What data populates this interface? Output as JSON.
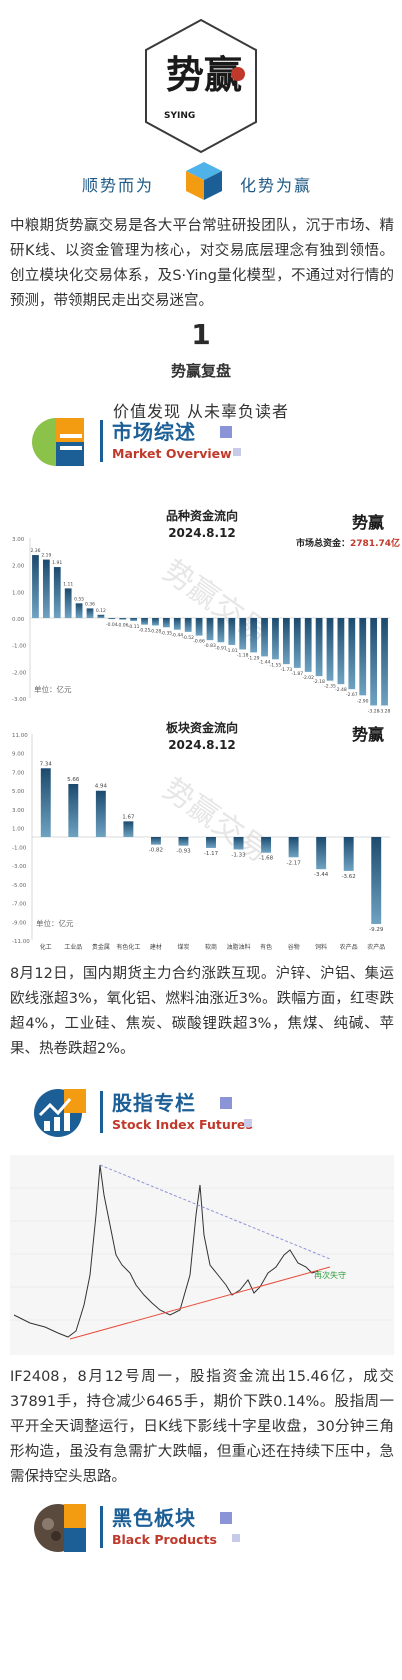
{
  "brand": {
    "logo_main": "势赢",
    "logo_sub": "SYING",
    "slogan_left": "顺势而为",
    "slogan_right": "化势为赢"
  },
  "intro": "中粮期货势赢交易是各大平台常驻研投团队，沉于市场、精研K线、以资金管理为核心，对交易底层理念有独到领悟。创立模块化交易体系，及S·Ying量化模型，不通过对行情的预测，带领期民走出交易迷宫。",
  "section": {
    "number": "1",
    "title": "势赢复盘",
    "subtitle": "价值发现 从未辜负读者"
  },
  "market_overview": {
    "title_cn": "市场综述",
    "title_en": "Market Overview"
  },
  "chart_data": [
    {
      "type": "bar",
      "title": "品种资金流向",
      "subtitle": "2024.8.12",
      "annotation_label": "市场总资金：",
      "annotation_value": "2781.74亿",
      "unit_label": "单位：亿元",
      "ylim": [
        -3.0,
        3.0
      ],
      "yticks": [
        "3.00",
        "2.00",
        "1.00",
        "0.00",
        "-1.00",
        "-2.00",
        "-3.00"
      ],
      "values": [
        2.36,
        2.19,
        1.91,
        1.11,
        0.55,
        0.36,
        0.12,
        -0.04,
        -0.06,
        -0.11,
        -0.25,
        -0.28,
        -0.35,
        -0.44,
        -0.52,
        -0.66,
        -0.83,
        -0.91,
        -1.01,
        -1.18,
        -1.29,
        -1.44,
        -1.55,
        -1.73,
        -1.87,
        -2.02,
        -2.18,
        -2.35,
        -2.48,
        -2.67,
        -2.9,
        -3.28,
        -3.28
      ]
    },
    {
      "type": "bar",
      "title": "板块资金流向",
      "subtitle": "2024.8.12",
      "unit_label": "单位：亿元",
      "ylim": [
        -11.0,
        11.0
      ],
      "yticks": [
        "11.00",
        "9.00",
        "7.00",
        "5.00",
        "3.00",
        "1.00",
        "-1.00",
        "-3.00",
        "-5.00",
        "-7.00",
        "-9.00",
        "-11.00"
      ],
      "categories": [
        "化工",
        "工业品",
        "贵金属",
        "有色化工",
        "建材",
        "煤炭",
        "软商",
        "油脂油料",
        "有色",
        "谷物",
        "饲料",
        "农产品",
        "农产品"
      ],
      "values": [
        7.34,
        5.66,
        4.94,
        1.67,
        -0.82,
        -0.93,
        -1.17,
        -1.33,
        -1.68,
        -2.17,
        -3.44,
        -3.62,
        -9.29
      ],
      "labels": [
        "7.34",
        "5.66",
        "4.94",
        "1.67",
        "-0.82",
        "-0.93",
        "-1.17",
        "-1.33",
        "-1.68",
        "-2.17",
        "-3.44",
        "-3.62",
        "-9.29"
      ]
    }
  ],
  "market_summary": "8月12日，国内期货主力合约涨跌互现。沪锌、沪铝、集运欧线涨超3%，氧化铝、燃料油涨近3%。跌幅方面，红枣跌超4%，工业硅、焦炭、碳酸锂跌超3%，焦煤、纯碱、苹果、热卷跌超2%。",
  "stock_index": {
    "title_cn": "股指专栏",
    "title_en": "Stock Index Futures",
    "kline_annotation": "再次失守"
  },
  "stock_summary": "IF2408，8月12号周一，股指资金流出15.46亿，成交37891手，持仓减少6465手，期价下跌0.14%。股指周一平开全天调整运行，日K线下影线十字星收盘，30分钟三角形构造，虽没有急需扩大跌幅，但重心还在持续下压中，急需保持空头思路。",
  "black_sector": {
    "title_cn": "黑色板块",
    "title_en": "Black Products"
  },
  "watermark": "势赢交易",
  "colors": {
    "bar_top": "#1c4a6e",
    "bar_bottom": "#6fa3c2",
    "accent_blue": "#1c5f96",
    "accent_red": "#c0392b"
  }
}
